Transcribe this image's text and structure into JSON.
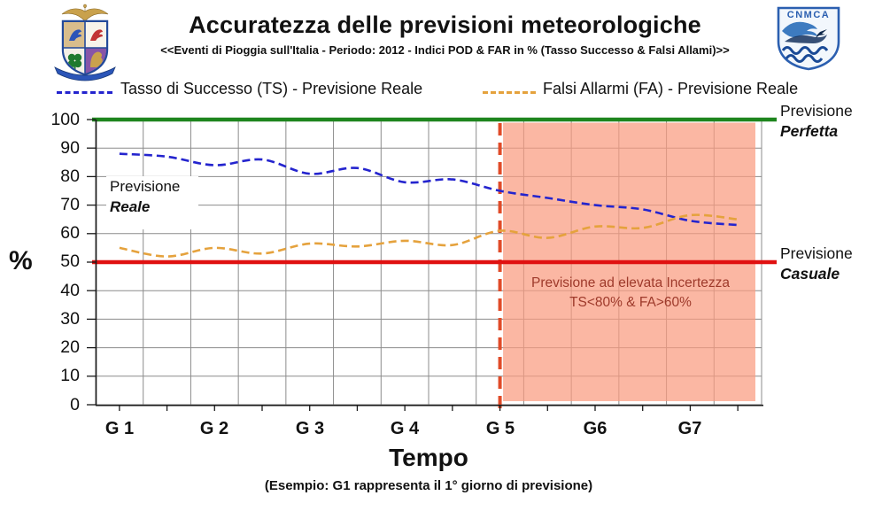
{
  "header": {
    "title": "Accuratezza delle previsioni meteorologiche",
    "subtitle": "<<Eventi di Pioggia sull'Italia - Periodo: 2012  - Indici POD & FAR in % (Tasso Successo & Falsi Allami)>>",
    "right_logo_text": "CNMCA"
  },
  "legend": {
    "ts_label": "Tasso di Successo (TS) - Previsione Reale",
    "fa_label": "Falsi Allarmi (FA) - Previsione Reale"
  },
  "axes": {
    "y_label": "%",
    "y_ticks": [
      "100",
      "90",
      "80",
      "70",
      "60",
      "50",
      "40",
      "30",
      "20",
      "10",
      "0"
    ],
    "x_labels": [
      "G 1",
      "G 2",
      "G 3",
      "G 4",
      "G 5",
      "G6",
      "G7"
    ],
    "x_title": "Tempo",
    "x_note": "(Esempio: G1 rappresenta il 1° giorno di previsione)"
  },
  "annotations": {
    "reale_line1": "Previsione",
    "reale_line2": "Reale",
    "perfetta_line1": "Previsione",
    "perfetta_line2": "Perfetta",
    "casuale_line1": "Previsione",
    "casuale_line2": "Casuale",
    "uncertainty_line1": "Previsione  ad elevata Incertezza",
    "uncertainty_line2": "TS<80% & FA>60%"
  },
  "chart_data": {
    "type": "line",
    "x": [
      1,
      1.5,
      2,
      2.5,
      3,
      3.5,
      4,
      4.5,
      5,
      5.5,
      6,
      6.5,
      7,
      7.5
    ],
    "x_unit": "giorno di previsione (G)",
    "series": [
      {
        "name": "Tasso di Successo (TS) - Previsione Reale",
        "color": "#2424CE",
        "values": [
          88,
          87,
          84,
          86,
          81,
          83,
          78,
          79,
          75,
          72.5,
          70,
          68.5,
          64.5,
          63
        ]
      },
      {
        "name": "Falsi Allarmi (FA) - Previsione Reale",
        "color": "#E5A23D",
        "values": [
          55,
          52,
          55,
          53,
          56.5,
          55.5,
          57.5,
          56,
          61,
          58.5,
          62.5,
          62,
          66.5,
          65
        ]
      }
    ],
    "reference_lines": [
      {
        "label": "Previsione Perfetta",
        "value": 100,
        "color": "#1E851E"
      },
      {
        "label": "Previsione Casuale",
        "value": 50,
        "color": "#E01111"
      }
    ],
    "shaded_region": {
      "from_day": 5,
      "label": "Previsione  ad elevata Incertezza TS<80% & FA>60%",
      "fill": "#F99B7F",
      "boundary_color": "#E04B28"
    },
    "title": "Accuratezza delle previsioni meteorologiche",
    "xlabel": "Tempo",
    "ylabel": "%",
    "ylim": [
      0,
      100
    ],
    "grid": true,
    "legend_position": "top"
  }
}
